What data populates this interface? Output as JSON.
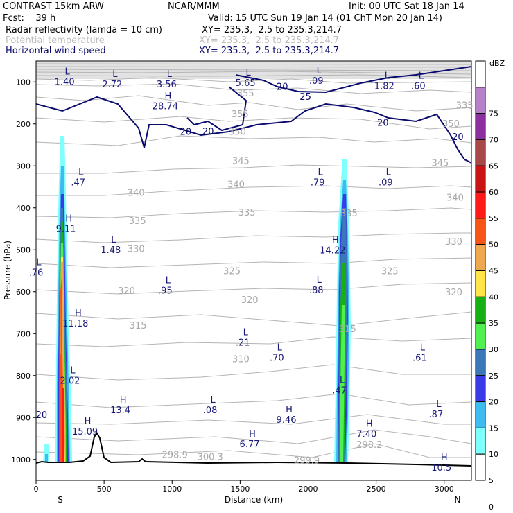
{
  "header": {
    "model": "CONTRAST 15km ARW",
    "org": "NCAR/MMM",
    "init": "Init: 00 UTC Sat 18 Jan 14",
    "fcst": "Fcst:    39 h",
    "valid": "Valid: 15 UTC Sun 19 Jan 14 (01 ChT Mon 20 Jan 14)",
    "fields": [
      {
        "name": "Radar reflectivity (lamda = 10 cm)",
        "xy": "XY= 235.3,  2.5 to 235.3,214.7"
      },
      {
        "name": "Potential temperature",
        "xy": "XY= 235.3,  2.5 to 235.3,214.7"
      },
      {
        "name": "Horizontal wind speed",
        "xy": "XY= 235.3,  2.5 to 235.3,214.7"
      }
    ]
  },
  "colors": {
    "reflectivity": [
      "#ffffff",
      "#80ffff",
      "#3cbcf0",
      "#3a3ae8",
      "#3a78b8",
      "#50f050",
      "#16b016",
      "#ffe44a",
      "#f0a850",
      "#f85418",
      "#ff1a1a",
      "#c81414",
      "#a84848",
      "#8c30a0",
      "#b880c8"
    ],
    "wind": "#0a0a6e",
    "theta": "#b4b4b4",
    "terrain": "#000000"
  },
  "chart_data": {
    "type": "contour",
    "xlabel": "Distance (km)",
    "ylabel": "Pressure (hPa)",
    "xlim": [
      0,
      3200
    ],
    "ylim": [
      1050,
      50
    ],
    "x_ticks": [
      "0",
      "500",
      "1000",
      "1500",
      "2000",
      "2500",
      "3000"
    ],
    "x_tick_values": [
      0,
      500,
      1000,
      1500,
      2000,
      2500,
      3000
    ],
    "y_ticks": [
      "100",
      "200",
      "300",
      "400",
      "500",
      "600",
      "700",
      "800",
      "900",
      "1000"
    ],
    "y_tick_values": [
      100,
      200,
      300,
      400,
      500,
      600,
      700,
      800,
      900,
      1000
    ],
    "endpoints": {
      "left": "S",
      "right": "N"
    },
    "colorbar": {
      "unit": "dBZ",
      "levels": [
        0,
        5,
        10,
        15,
        20,
        25,
        30,
        35,
        40,
        45,
        50,
        55,
        60,
        65,
        70,
        75
      ],
      "labels": [
        "75",
        "70",
        "65",
        "60",
        "55",
        "50",
        "45",
        "40",
        "35",
        "30",
        "25",
        "20",
        "15",
        "10",
        "5",
        "0"
      ]
    },
    "wind_speed_labels": [
      {
        "text": "20",
        "x": 1810,
        "p": 110
      },
      {
        "text": "25",
        "x": 1980,
        "p": 134
      },
      {
        "text": "20",
        "x": 2550,
        "p": 196
      },
      {
        "text": "20",
        "x": 3100,
        "p": 230
      },
      {
        "text": "20",
        "x": 1100,
        "p": 218
      },
      {
        "text": "20",
        "x": 1265,
        "p": 217
      },
      {
        "text": "20",
        "x": 40,
        "p": 893
      }
    ],
    "theta_labels": [
      {
        "text": "355",
        "x": 1500,
        "p": 176
      },
      {
        "text": "355",
        "x": 1540,
        "p": 126
      },
      {
        "text": "350",
        "x": 1480,
        "p": 218
      },
      {
        "text": "350",
        "x": 3050,
        "p": 199
      },
      {
        "text": "345",
        "x": 1505,
        "p": 287
      },
      {
        "text": "345",
        "x": 2970,
        "p": 292
      },
      {
        "text": "340",
        "x": 1470,
        "p": 343
      },
      {
        "text": "340",
        "x": 735,
        "p": 363
      },
      {
        "text": "340",
        "x": 3080,
        "p": 375
      },
      {
        "text": "335",
        "x": 1550,
        "p": 410
      },
      {
        "text": "335",
        "x": 745,
        "p": 430
      },
      {
        "text": "335",
        "x": 2300,
        "p": 412
      },
      {
        "text": "335",
        "x": 3150,
        "p": 155
      },
      {
        "text": "330",
        "x": 735,
        "p": 497
      },
      {
        "text": "330",
        "x": 3070,
        "p": 480
      },
      {
        "text": "325",
        "x": 1440,
        "p": 550
      },
      {
        "text": "325",
        "x": 2600,
        "p": 550
      },
      {
        "text": "320",
        "x": 1570,
        "p": 619
      },
      {
        "text": "320",
        "x": 665,
        "p": 597
      },
      {
        "text": "320",
        "x": 3070,
        "p": 600
      },
      {
        "text": "315",
        "x": 750,
        "p": 680
      },
      {
        "text": "315",
        "x": 2290,
        "p": 688
      },
      {
        "text": "310",
        "x": 1505,
        "p": 760
      },
      {
        "text": "298.2",
        "x": 2450,
        "p": 964
      },
      {
        "text": "300.3",
        "x": 1280,
        "p": 993
      },
      {
        "text": "299.9",
        "x": 1990,
        "p": 1001
      },
      {
        "text": "298.9",
        "x": 1020,
        "p": 988
      }
    ],
    "extrema": [
      {
        "kind": "H",
        "value": "28.74",
        "x": 970,
        "p": 140
      },
      {
        "kind": "L",
        "value": "2.72",
        "x": 580,
        "p": 88
      },
      {
        "kind": "L",
        "value": "3.56",
        "x": 980,
        "p": 88
      },
      {
        "kind": "L",
        "value": "5.65",
        "x": 1560,
        "p": 85
      },
      {
        "kind": "L",
        "value": ".09",
        "x": 2080,
        "p": 80
      },
      {
        "kind": "L",
        "value": "1.82",
        "x": 2580,
        "p": 92
      },
      {
        "kind": "L",
        "value": ".60",
        "x": 2830,
        "p": 92
      },
      {
        "kind": "L",
        "value": ".47",
        "x": 330,
        "p": 322
      },
      {
        "kind": "L",
        "value": ".79",
        "x": 2090,
        "p": 322
      },
      {
        "kind": "L",
        "value": ".09",
        "x": 2590,
        "p": 322
      },
      {
        "kind": "H",
        "value": "9.11",
        "x": 240,
        "p": 433
      },
      {
        "kind": "L",
        "value": "1.48",
        "x": 570,
        "p": 483
      },
      {
        "kind": "H",
        "value": "14.22",
        "x": 2200,
        "p": 484
      },
      {
        "kind": "L",
        "value": ".76",
        "x": 20,
        "p": 537
      },
      {
        "kind": "L",
        "value": ".95",
        "x": 970,
        "p": 580
      },
      {
        "kind": "L",
        "value": ".88",
        "x": 2080,
        "p": 579
      },
      {
        "kind": "H",
        "value": "11.18",
        "x": 310,
        "p": 658
      },
      {
        "kind": "L",
        "value": ".21",
        "x": 1540,
        "p": 704
      },
      {
        "kind": "L",
        "value": ".70",
        "x": 1790,
        "p": 740
      },
      {
        "kind": "L",
        "value": ".61",
        "x": 2840,
        "p": 740
      },
      {
        "kind": "L",
        "value": "2.02",
        "x": 270,
        "p": 795
      },
      {
        "kind": "L",
        "value": ".47",
        "x": 2250,
        "p": 818
      },
      {
        "kind": "H",
        "value": "13.4",
        "x": 640,
        "p": 865
      },
      {
        "kind": "L",
        "value": ".08",
        "x": 1300,
        "p": 865
      },
      {
        "kind": "L",
        "value": ".87",
        "x": 2960,
        "p": 875
      },
      {
        "kind": "H",
        "value": "9.46",
        "x": 1860,
        "p": 888
      },
      {
        "kind": "H",
        "value": "15.09",
        "x": 380,
        "p": 916
      },
      {
        "kind": "H",
        "value": "7.40",
        "x": 2450,
        "p": 922
      },
      {
        "kind": "H",
        "value": "6.77",
        "x": 1590,
        "p": 946
      },
      {
        "kind": "H",
        "value": "10.5",
        "x": 3000,
        "p": 1002
      },
      {
        "kind": "L",
        "value": "1.40",
        "x": 230,
        "p": 82
      }
    ]
  }
}
